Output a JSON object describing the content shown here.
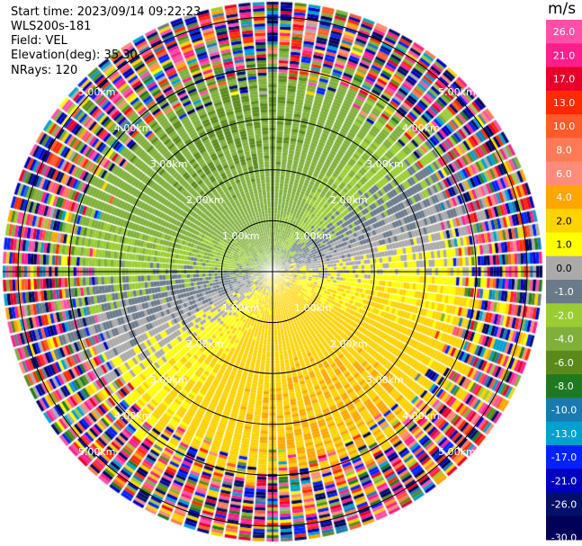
{
  "header": {
    "start_time": "Start time: 2023/09/14 09:22:23",
    "instrument": "WLS200s-181",
    "field": "Field: VEL",
    "elevation": "Elevation(deg): 35.30",
    "nrays": "NRays: 120"
  },
  "chart_data": {
    "type": "heatmap",
    "projection": "polar-ppi",
    "field": "VEL",
    "units": "m/s",
    "n_rays": 120,
    "max_range_km": 5.3,
    "range_ring_km": [
      1.0,
      2.0,
      3.0,
      4.0,
      5.0
    ],
    "range_ring_labels": [
      "1.00km",
      "2.00km",
      "3.00km",
      "4.00km",
      "5.00km"
    ],
    "colorbar": {
      "title": "m/s",
      "tick_labels": [
        "26.0",
        "21.0",
        "17.0",
        "13.0",
        "10.0",
        "8.0",
        "6.0",
        "4.0",
        "2.0",
        "1.0",
        "0.0",
        "-1.0",
        "-2.0",
        "-4.0",
        "-6.0",
        "-8.0",
        "-10.0",
        "-13.0",
        "-17.0",
        "-21.0",
        "-26.0",
        "-30.0"
      ],
      "bins": [
        {
          "min": 26,
          "max": 30,
          "color": "#ff4fa8"
        },
        {
          "min": 21,
          "max": 26,
          "color": "#ff1f8c"
        },
        {
          "min": 17,
          "max": 21,
          "color": "#e8002a"
        },
        {
          "min": 13,
          "max": 17,
          "color": "#ff2a00"
        },
        {
          "min": 10,
          "max": 13,
          "color": "#ff5a2a"
        },
        {
          "min": 8,
          "max": 10,
          "color": "#ff7a55"
        },
        {
          "min": 6,
          "max": 8,
          "color": "#ff8c7a"
        },
        {
          "min": 4,
          "max": 6,
          "color": "#ffa600"
        },
        {
          "min": 2,
          "max": 4,
          "color": "#ffd200"
        },
        {
          "min": 1,
          "max": 2,
          "color": "#ffff00"
        },
        {
          "min": 0,
          "max": 1,
          "color": "#aaaaaa"
        },
        {
          "min": -1,
          "max": 0,
          "color": "#6a7a8a"
        },
        {
          "min": -2,
          "max": -1,
          "color": "#9acd32"
        },
        {
          "min": -4,
          "max": -2,
          "color": "#7fb03a"
        },
        {
          "min": -6,
          "max": -4,
          "color": "#5a8a1a"
        },
        {
          "min": -8,
          "max": -6,
          "color": "#1f7a1f"
        },
        {
          "min": -10,
          "max": -8,
          "color": "#1a7ab0"
        },
        {
          "min": -13,
          "max": -10,
          "color": "#00a0d0"
        },
        {
          "min": -17,
          "max": -13,
          "color": "#0022ff"
        },
        {
          "min": -21,
          "max": -17,
          "color": "#0000c0"
        },
        {
          "min": -26,
          "max": -21,
          "color": "#00106a"
        },
        {
          "min": -30,
          "max": -26,
          "color": "#000058"
        }
      ]
    },
    "pattern_estimate": {
      "description_note": "",
      "inner_clean_range_km": 3.4,
      "axis_direction_deg_from_north": 160,
      "velocity_amplitude_ms": 4.0
    }
  }
}
